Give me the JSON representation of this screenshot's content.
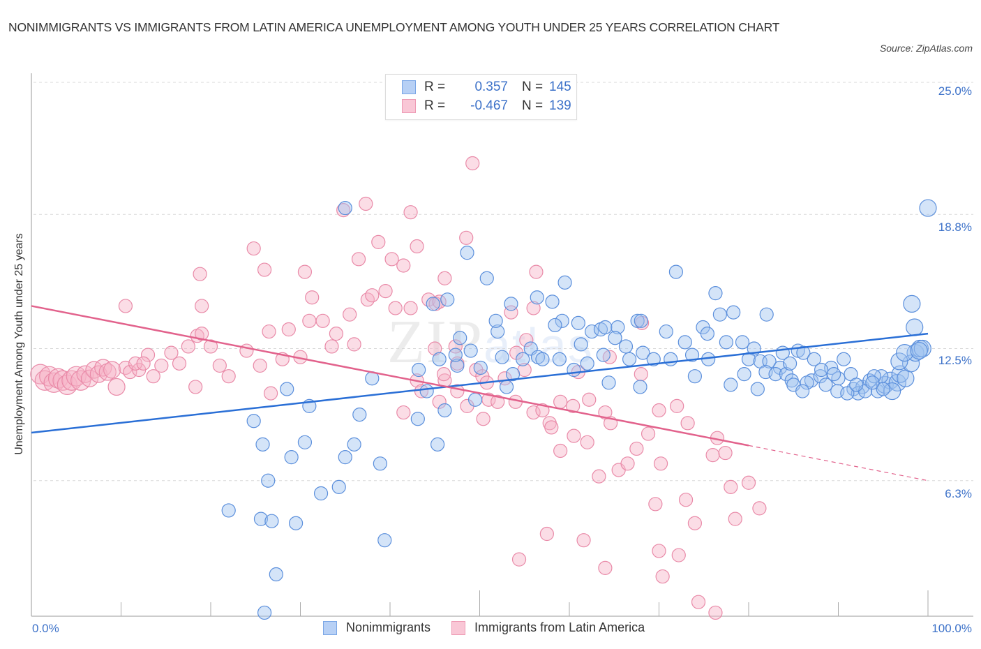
{
  "header": {
    "title": "NONIMMIGRANTS VS IMMIGRANTS FROM LATIN AMERICA UNEMPLOYMENT AMONG YOUTH UNDER 25 YEARS CORRELATION CHART",
    "source": "Source: ZipAtlas.com"
  },
  "watermark": {
    "zip": "ZIP",
    "atlas": "atlas"
  },
  "legend": {
    "series": [
      {
        "name": "Nonimmigrants",
        "r_label": "R =",
        "r_value": "0.357",
        "n_label": "N =",
        "n_value": "145",
        "color": "#6a9de0"
      },
      {
        "name": "Immigrants from Latin America",
        "r_label": "R =",
        "r_value": "-0.467",
        "n_label": "N =",
        "n_value": "139",
        "color": "#ea7fa1"
      }
    ]
  },
  "chart_data": {
    "type": "scatter",
    "title": "NONIMMIGRANTS VS IMMIGRANTS FROM LATIN AMERICA UNEMPLOYMENT AMONG YOUTH UNDER 25 YEARS CORRELATION CHART",
    "xlabel": "",
    "ylabel": "Unemployment Among Youth under 25 years",
    "xlim": [
      0,
      100
    ],
    "ylim": [
      0,
      25
    ],
    "x_tick_labels": [
      "0.0%",
      "100.0%"
    ],
    "y_ticks": [
      6.3,
      12.5,
      18.8,
      25.0
    ],
    "y_tick_labels": [
      "6.3%",
      "12.5%",
      "18.8%",
      "25.0%"
    ],
    "grid": "horizontal-dashed",
    "legend_placement": "top-center",
    "series": [
      {
        "name": "Nonimmigrants",
        "color": "#6a9de0",
        "R": 0.357,
        "N": 145,
        "trend": {
          "x": [
            0,
            100
          ],
          "y": [
            8.55,
            13.2
          ]
        },
        "points": [
          [
            35.0,
            19.1
          ],
          [
            50.8,
            15.8
          ],
          [
            52.0,
            13.3
          ],
          [
            47.5,
            11.7
          ],
          [
            45.5,
            12.0
          ],
          [
            43.2,
            11.5
          ],
          [
            38.0,
            11.1
          ],
          [
            28.5,
            10.6
          ],
          [
            31.0,
            9.8
          ],
          [
            24.8,
            9.1
          ],
          [
            25.8,
            8.0
          ],
          [
            30.5,
            8.1
          ],
          [
            36.0,
            8.0
          ],
          [
            35.0,
            7.4
          ],
          [
            29.0,
            7.4
          ],
          [
            26.4,
            6.3
          ],
          [
            32.3,
            5.7
          ],
          [
            34.3,
            6.0
          ],
          [
            38.9,
            7.1
          ],
          [
            43.1,
            9.2
          ],
          [
            45.3,
            8.0
          ],
          [
            46.1,
            9.6
          ],
          [
            44.1,
            10.5
          ],
          [
            36.6,
            9.4
          ],
          [
            22.0,
            4.9
          ],
          [
            25.6,
            4.5
          ],
          [
            26.8,
            4.4
          ],
          [
            29.5,
            4.3
          ],
          [
            39.4,
            3.5
          ],
          [
            27.3,
            1.9
          ],
          [
            26.0,
            0.1
          ],
          [
            48.6,
            17.0
          ],
          [
            53.5,
            14.6
          ],
          [
            44.8,
            14.6
          ],
          [
            46.4,
            14.8
          ],
          [
            47.8,
            13.0
          ],
          [
            51.8,
            13.8
          ],
          [
            49.0,
            12.4
          ],
          [
            47.3,
            12.2
          ],
          [
            52.5,
            12.1
          ],
          [
            50.1,
            11.6
          ],
          [
            53.7,
            11.3
          ],
          [
            56.4,
            14.9
          ],
          [
            58.1,
            14.7
          ],
          [
            59.5,
            15.6
          ],
          [
            55.7,
            12.5
          ],
          [
            56.5,
            12.1
          ],
          [
            54.8,
            12.0
          ],
          [
            57.0,
            12.0
          ],
          [
            58.9,
            12.0
          ],
          [
            59.2,
            13.8
          ],
          [
            61.0,
            13.7
          ],
          [
            62.5,
            13.3
          ],
          [
            63.5,
            13.4
          ],
          [
            64.0,
            13.5
          ],
          [
            65.4,
            13.5
          ],
          [
            63.8,
            12.2
          ],
          [
            62.0,
            11.8
          ],
          [
            61.3,
            12.7
          ],
          [
            65.1,
            13.0
          ],
          [
            66.3,
            12.6
          ],
          [
            67.6,
            13.8
          ],
          [
            68.0,
            13.8
          ],
          [
            68.2,
            12.3
          ],
          [
            66.7,
            12.0
          ],
          [
            69.4,
            12.0
          ],
          [
            70.8,
            13.3
          ],
          [
            71.3,
            12.0
          ],
          [
            72.9,
            12.8
          ],
          [
            73.7,
            12.2
          ],
          [
            74.9,
            13.5
          ],
          [
            75.4,
            13.2
          ],
          [
            76.3,
            15.1
          ],
          [
            71.9,
            16.1
          ],
          [
            76.8,
            14.1
          ],
          [
            78.3,
            14.2
          ],
          [
            77.5,
            12.8
          ],
          [
            79.3,
            12.8
          ],
          [
            80.6,
            12.5
          ],
          [
            80.0,
            12.0
          ],
          [
            81.3,
            11.9
          ],
          [
            82.3,
            11.9
          ],
          [
            83.5,
            11.6
          ],
          [
            81.9,
            11.4
          ],
          [
            83.0,
            11.3
          ],
          [
            84.2,
            11.3
          ],
          [
            85.5,
            12.4
          ],
          [
            86.1,
            12.3
          ],
          [
            87.3,
            12.0
          ],
          [
            84.8,
            11.0
          ],
          [
            87.0,
            11.0
          ],
          [
            88.0,
            11.2
          ],
          [
            89.2,
            11.6
          ],
          [
            90.0,
            11.1
          ],
          [
            90.6,
            12.0
          ],
          [
            91.4,
            11.3
          ],
          [
            88.6,
            10.8
          ],
          [
            89.9,
            10.5
          ],
          [
            91.7,
            10.6
          ],
          [
            92.7,
            10.7
          ],
          [
            93.5,
            11.0
          ],
          [
            92.2,
            10.4
          ],
          [
            93.0,
            10.5
          ],
          [
            94.4,
            10.5
          ],
          [
            95.2,
            10.8
          ],
          [
            95.8,
            11.0
          ],
          [
            96.6,
            10.9
          ],
          [
            96.0,
            10.5
          ],
          [
            96.9,
            11.3
          ],
          [
            94.8,
            11.2
          ],
          [
            97.5,
            11.1
          ],
          [
            98.1,
            11.8
          ],
          [
            98.6,
            12.3
          ],
          [
            99.1,
            12.5
          ],
          [
            99.4,
            12.5
          ],
          [
            96.8,
            11.9
          ],
          [
            97.4,
            12.3
          ],
          [
            95.0,
            10.6
          ],
          [
            94.0,
            11.2
          ],
          [
            82.0,
            14.1
          ],
          [
            98.5,
            13.5
          ],
          [
            98.2,
            14.6
          ],
          [
            99.0,
            12.4
          ],
          [
            100.0,
            19.1
          ],
          [
            78.0,
            10.8
          ],
          [
            81.0,
            10.6
          ],
          [
            85.0,
            10.8
          ],
          [
            86.5,
            10.9
          ],
          [
            88.1,
            11.5
          ],
          [
            89.5,
            11.3
          ],
          [
            91.0,
            10.4
          ],
          [
            92.0,
            10.8
          ],
          [
            93.8,
            10.9
          ],
          [
            86.0,
            10.5
          ],
          [
            83.8,
            12.3
          ],
          [
            84.6,
            11.8
          ],
          [
            79.5,
            11.3
          ],
          [
            75.5,
            12.0
          ],
          [
            74.0,
            11.2
          ],
          [
            60.5,
            11.5
          ],
          [
            58.4,
            13.6
          ],
          [
            53.0,
            10.7
          ],
          [
            49.5,
            10.1
          ],
          [
            64.4,
            10.9
          ],
          [
            67.9,
            10.7
          ]
        ]
      },
      {
        "name": "Immigrants from Latin America",
        "color": "#ea7fa1",
        "R": -0.467,
        "N": 139,
        "trend": {
          "x": [
            0,
            80
          ],
          "y": [
            14.5,
            7.95
          ],
          "dashed_extension": {
            "x": [
              80,
              100
            ],
            "y": [
              7.95,
              6.3
            ]
          }
        },
        "points": [
          [
            1.0,
            11.3
          ],
          [
            1.5,
            11.0
          ],
          [
            2.0,
            11.2
          ],
          [
            2.5,
            10.9
          ],
          [
            3.0,
            11.1
          ],
          [
            3.5,
            11.0
          ],
          [
            4.0,
            10.8
          ],
          [
            4.5,
            11.0
          ],
          [
            5.0,
            11.2
          ],
          [
            5.5,
            11.0
          ],
          [
            6.0,
            11.3
          ],
          [
            6.5,
            11.1
          ],
          [
            7.0,
            11.5
          ],
          [
            7.5,
            11.3
          ],
          [
            8.0,
            11.6
          ],
          [
            8.5,
            11.4
          ],
          [
            9.0,
            11.5
          ],
          [
            9.5,
            10.7
          ],
          [
            10.5,
            11.6
          ],
          [
            11.0,
            11.4
          ],
          [
            12.0,
            11.5
          ],
          [
            13.0,
            12.2
          ],
          [
            10.5,
            14.5
          ],
          [
            11.6,
            11.8
          ],
          [
            12.5,
            11.8
          ],
          [
            13.6,
            11.2
          ],
          [
            14.5,
            11.7
          ],
          [
            15.6,
            12.3
          ],
          [
            16.5,
            11.8
          ],
          [
            17.5,
            12.6
          ],
          [
            18.5,
            13.1
          ],
          [
            19.0,
            13.2
          ],
          [
            20.0,
            12.6
          ],
          [
            21.0,
            11.7
          ],
          [
            22.0,
            11.2
          ],
          [
            24.0,
            12.4
          ],
          [
            25.5,
            11.7
          ],
          [
            26.5,
            13.3
          ],
          [
            18.3,
            10.7
          ],
          [
            26.7,
            10.4
          ],
          [
            28.0,
            12.0
          ],
          [
            19.0,
            14.5
          ],
          [
            28.7,
            13.4
          ],
          [
            31.3,
            14.9
          ],
          [
            30.5,
            16.1
          ],
          [
            26.0,
            16.2
          ],
          [
            24.8,
            17.2
          ],
          [
            18.8,
            16.0
          ],
          [
            30.0,
            12.1
          ],
          [
            31.0,
            13.8
          ],
          [
            32.5,
            13.8
          ],
          [
            33.5,
            12.6
          ],
          [
            34.0,
            13.2
          ],
          [
            35.5,
            14.1
          ],
          [
            36.0,
            12.7
          ],
          [
            37.5,
            14.8
          ],
          [
            38.0,
            15.0
          ],
          [
            36.5,
            16.7
          ],
          [
            34.8,
            19.0
          ],
          [
            38.7,
            17.5
          ],
          [
            39.5,
            15.2
          ],
          [
            40.2,
            16.7
          ],
          [
            40.6,
            14.4
          ],
          [
            41.5,
            16.4
          ],
          [
            42.3,
            14.4
          ],
          [
            43.0,
            17.3
          ],
          [
            42.3,
            18.9
          ],
          [
            44.3,
            14.8
          ],
          [
            45.1,
            14.6
          ],
          [
            45.5,
            14.7
          ],
          [
            46.1,
            15.8
          ],
          [
            45.0,
            12.5
          ],
          [
            46.1,
            11.0
          ],
          [
            43.0,
            11.0
          ],
          [
            41.5,
            9.5
          ],
          [
            43.5,
            10.5
          ],
          [
            45.5,
            10.0
          ],
          [
            46.0,
            11.3
          ],
          [
            47.5,
            11.8
          ],
          [
            49.6,
            11.5
          ],
          [
            50.3,
            11.2
          ],
          [
            50.8,
            10.9
          ],
          [
            51.0,
            10.1
          ],
          [
            52.0,
            10.0
          ],
          [
            48.6,
            9.8
          ],
          [
            47.5,
            10.5
          ],
          [
            50.4,
            9.2
          ],
          [
            47.3,
            12.6
          ],
          [
            56.3,
            16.1
          ],
          [
            52.8,
            11.1
          ],
          [
            54.1,
            12.3
          ],
          [
            55.2,
            12.9
          ],
          [
            56.0,
            14.4
          ],
          [
            53.5,
            14.2
          ],
          [
            55.0,
            11.5
          ],
          [
            54.0,
            10.0
          ],
          [
            56.0,
            9.5
          ],
          [
            57.0,
            9.6
          ],
          [
            57.8,
            9.0
          ],
          [
            58.0,
            8.8
          ],
          [
            59.0,
            10.0
          ],
          [
            60.4,
            9.8
          ],
          [
            61.0,
            11.4
          ],
          [
            62.2,
            10.1
          ],
          [
            64.0,
            9.5
          ],
          [
            64.5,
            12.1
          ],
          [
            67.5,
            7.8
          ],
          [
            68.1,
            13.7
          ],
          [
            68.0,
            11.3
          ],
          [
            70.0,
            9.6
          ],
          [
            72.0,
            9.8
          ],
          [
            64.6,
            9.0
          ],
          [
            59.0,
            7.7
          ],
          [
            60.5,
            8.4
          ],
          [
            62.0,
            8.1
          ],
          [
            63.3,
            6.5
          ],
          [
            65.5,
            6.8
          ],
          [
            66.5,
            7.1
          ],
          [
            68.8,
            8.5
          ],
          [
            70.2,
            7.1
          ],
          [
            69.6,
            5.2
          ],
          [
            73.0,
            5.4
          ],
          [
            73.2,
            9.0
          ],
          [
            76.0,
            7.5
          ],
          [
            77.4,
            7.6
          ],
          [
            78.5,
            4.5
          ],
          [
            76.5,
            8.3
          ],
          [
            80.0,
            6.2
          ],
          [
            78.0,
            6.0
          ],
          [
            74.0,
            4.3
          ],
          [
            57.5,
            3.8
          ],
          [
            54.4,
            2.6
          ],
          [
            61.6,
            3.5
          ],
          [
            70.0,
            3.0
          ],
          [
            70.4,
            1.8
          ],
          [
            72.2,
            2.8
          ],
          [
            64.0,
            2.2
          ],
          [
            74.4,
            0.6
          ],
          [
            76.3,
            0.1
          ],
          [
            81.2,
            5.0
          ],
          [
            49.2,
            21.2
          ],
          [
            48.5,
            17.7
          ],
          [
            37.3,
            19.3
          ]
        ]
      }
    ]
  },
  "axes": {
    "y_ticks": [
      {
        "value": 25.0,
        "label": "25.0%"
      },
      {
        "value": 18.8,
        "label": "18.8%"
      },
      {
        "value": 12.5,
        "label": "12.5%"
      },
      {
        "value": 6.3,
        "label": "6.3%"
      }
    ],
    "x_tick_left": "0.0%",
    "x_tick_right": "100.0%",
    "ylabel": "Unemployment Among Youth under 25 years"
  }
}
